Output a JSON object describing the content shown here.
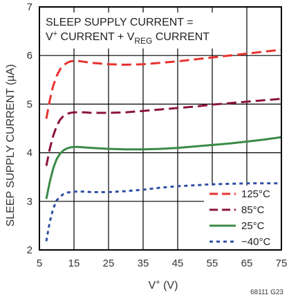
{
  "chart_data": {
    "type": "line",
    "annotation": {
      "line1": "SLEEP SUPPLY CURRENT =",
      "line2_prefix": "V",
      "line2_sup": "+",
      "line2_mid": " CURRENT + V",
      "line2_sub": "REG",
      "line2_suffix": " CURRENT"
    },
    "xlabel": {
      "main": "V",
      "sup": "+",
      "unit": " (V)"
    },
    "ylabel": "SLEEP SUPPLY CURRENT (µA)",
    "figure_id": "68111 G23",
    "xlim": [
      5,
      75
    ],
    "ylim": [
      2,
      7
    ],
    "xticks": [
      "5",
      "15",
      "25",
      "35",
      "45",
      "55",
      "65",
      "75"
    ],
    "yticks": [
      "2",
      "3",
      "4",
      "5",
      "6",
      "7"
    ],
    "grid": true,
    "legend_position": "bottom-right",
    "colors": {
      "125C": "#e8322f",
      "85C": "#8b1538",
      "25C": "#3a8a46",
      "m40C": "#2f4fa3",
      "grid": "#000000"
    },
    "series": [
      {
        "name": "125°C",
        "color": "#e8322f",
        "dash": "long",
        "x": [
          7,
          8,
          9,
          10,
          11,
          12,
          13,
          14,
          15,
          16,
          18,
          20,
          25,
          30,
          35,
          40,
          45,
          50,
          55,
          60,
          65,
          70,
          75
        ],
        "y": [
          4.7,
          5.08,
          5.38,
          5.58,
          5.72,
          5.8,
          5.85,
          5.88,
          5.89,
          5.89,
          5.87,
          5.85,
          5.82,
          5.81,
          5.82,
          5.85,
          5.88,
          5.92,
          5.96,
          6.0,
          6.04,
          6.08,
          6.12
        ]
      },
      {
        "name": "85°C",
        "color": "#8b1538",
        "dash": "long",
        "x": [
          7,
          8,
          9,
          10,
          11,
          12,
          13,
          14,
          15,
          16,
          18,
          20,
          25,
          30,
          35,
          40,
          45,
          50,
          55,
          60,
          65,
          70,
          75
        ],
        "y": [
          3.73,
          4.08,
          4.35,
          4.55,
          4.68,
          4.76,
          4.8,
          4.82,
          4.83,
          4.83,
          4.83,
          4.82,
          4.82,
          4.83,
          4.86,
          4.89,
          4.92,
          4.95,
          4.99,
          5.02,
          5.05,
          5.08,
          5.11
        ]
      },
      {
        "name": "25°C",
        "color": "#3a8a46",
        "dash": "solid",
        "x": [
          7,
          8,
          9,
          10,
          11,
          12,
          13,
          14,
          15,
          16,
          18,
          20,
          25,
          30,
          35,
          40,
          45,
          50,
          55,
          60,
          65,
          70,
          75
        ],
        "y": [
          3.05,
          3.4,
          3.68,
          3.87,
          3.98,
          4.05,
          4.09,
          4.11,
          4.12,
          4.12,
          4.11,
          4.1,
          4.08,
          4.07,
          4.07,
          4.08,
          4.1,
          4.13,
          4.16,
          4.19,
          4.23,
          4.27,
          4.32
        ]
      },
      {
        "name": "−40°C",
        "color": "#2f4fa3",
        "dash": "short",
        "x": [
          7,
          8,
          9,
          10,
          11,
          12,
          13,
          14,
          15,
          16,
          18,
          20,
          25,
          30,
          35,
          40,
          45,
          50,
          55,
          60,
          65,
          70,
          75
        ],
        "y": [
          2.18,
          2.58,
          2.85,
          3.02,
          3.1,
          3.15,
          3.18,
          3.19,
          3.2,
          3.2,
          3.2,
          3.19,
          3.19,
          3.21,
          3.24,
          3.28,
          3.31,
          3.33,
          3.35,
          3.36,
          3.37,
          3.37,
          3.37
        ]
      }
    ]
  }
}
